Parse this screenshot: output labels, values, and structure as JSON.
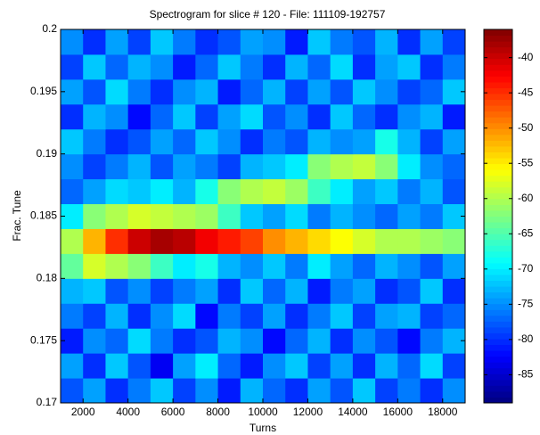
{
  "chart_data": {
    "type": "heatmap",
    "title": "Spectrogram for slice # 120 - File: 111109-192757",
    "x_label": "Turns",
    "y_label": "Frac. Tune",
    "xlim": [
      1000,
      19000
    ],
    "ylim": [
      0.17,
      0.2
    ],
    "xticks": [
      2000,
      4000,
      6000,
      8000,
      10000,
      12000,
      14000,
      16000,
      18000
    ],
    "yticks": [
      0.17,
      0.175,
      0.18,
      0.185,
      0.19,
      0.195,
      0.2
    ],
    "xbins": [
      1000,
      2000,
      3000,
      4000,
      5000,
      6000,
      7000,
      8000,
      9000,
      10000,
      11000,
      12000,
      13000,
      14000,
      15000,
      16000,
      17000,
      18000,
      19000
    ],
    "ybins": [
      0.17,
      0.172,
      0.174,
      0.176,
      0.178,
      0.18,
      0.182,
      0.184,
      0.186,
      0.188,
      0.19,
      0.192,
      0.194,
      0.196,
      0.198,
      0.2
    ],
    "z": [
      [
        -78,
        -74,
        -80,
        -76,
        -72,
        -79,
        -75,
        -81,
        -73,
        -77,
        -80,
        -74,
        -78,
        -72,
        -79,
        -76,
        -80,
        -75
      ],
      [
        -74,
        -80,
        -72,
        -78,
        -83,
        -74,
        -70,
        -77,
        -81,
        -75,
        -72,
        -79,
        -74,
        -80,
        -73,
        -77,
        -71,
        -79
      ],
      [
        -81,
        -75,
        -77,
        -71,
        -76,
        -80,
        -78,
        -73,
        -75,
        -82,
        -77,
        -73,
        -80,
        -75,
        -78,
        -82,
        -76,
        -73
      ],
      [
        -76,
        -79,
        -73,
        -80,
        -75,
        -71,
        -82,
        -76,
        -79,
        -74,
        -80,
        -76,
        -72,
        -79,
        -74,
        -73,
        -79,
        -77
      ],
      [
        -73,
        -72,
        -78,
        -75,
        -79,
        -76,
        -74,
        -80,
        -72,
        -77,
        -73,
        -81,
        -76,
        -74,
        -80,
        -78,
        -72,
        -80
      ],
      [
        -64,
        -58,
        -60,
        -62,
        -66,
        -70,
        -68,
        -73,
        -75,
        -72,
        -76,
        -70,
        -74,
        -77,
        -73,
        -75,
        -78,
        -74
      ],
      [
        -60,
        -52,
        -45,
        -40,
        -38,
        -39,
        -42,
        -44,
        -46,
        -50,
        -52,
        -54,
        -56,
        -58,
        -60,
        -60,
        -61,
        -62
      ],
      [
        -70,
        -62,
        -60,
        -58,
        -59,
        -60,
        -61,
        -66,
        -72,
        -74,
        -71,
        -76,
        -73,
        -75,
        -77,
        -74,
        -76,
        -72
      ],
      [
        -77,
        -74,
        -71,
        -72,
        -70,
        -73,
        -68,
        -62,
        -60,
        -59,
        -61,
        -66,
        -70,
        -74,
        -72,
        -76,
        -73,
        -78
      ],
      [
        -75,
        -79,
        -76,
        -73,
        -78,
        -74,
        -76,
        -79,
        -73,
        -72,
        -70,
        -62,
        -60,
        -59,
        -62,
        -70,
        -75,
        -77
      ],
      [
        -72,
        -76,
        -80,
        -78,
        -74,
        -77,
        -72,
        -75,
        -80,
        -76,
        -78,
        -73,
        -75,
        -74,
        -68,
        -73,
        -79,
        -74
      ],
      [
        -80,
        -73,
        -75,
        -82,
        -77,
        -72,
        -79,
        -74,
        -71,
        -78,
        -75,
        -80,
        -72,
        -77,
        -80,
        -75,
        -73,
        -81
      ],
      [
        -74,
        -78,
        -71,
        -76,
        -80,
        -75,
        -73,
        -81,
        -77,
        -73,
        -79,
        -74,
        -78,
        -72,
        -75,
        -79,
        -77,
        -72
      ],
      [
        -79,
        -72,
        -77,
        -73,
        -75,
        -81,
        -77,
        -72,
        -76,
        -80,
        -73,
        -77,
        -71,
        -80,
        -74,
        -72,
        -80,
        -76
      ],
      [
        -75,
        -80,
        -74,
        -79,
        -72,
        -76,
        -80,
        -78,
        -74,
        -75,
        -81,
        -72,
        -76,
        -78,
        -73,
        -80,
        -74,
        -79
      ]
    ],
    "clim": [
      -89,
      -36
    ],
    "cticks": [
      -85,
      -80,
      -75,
      -70,
      -65,
      -60,
      -55,
      -50,
      -45,
      -40
    ],
    "colormap": "jet"
  }
}
